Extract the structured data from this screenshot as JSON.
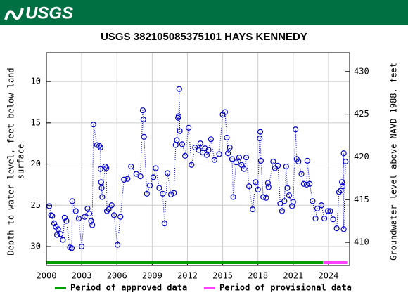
{
  "header": {
    "logo": "USGS"
  },
  "chart_data": {
    "type": "scatter",
    "title": "USGS 382105085375101 HAYS KENNEDY",
    "ylabel": [
      "Depth to water level, feet below land",
      "surface"
    ],
    "y2label": "Groundwater level above NAVD 1988, feet",
    "xlim": [
      2000,
      2025.8
    ],
    "xticks": [
      2000,
      2003,
      2006,
      2009,
      2012,
      2015,
      2018,
      2021,
      2024
    ],
    "ylim": [
      32.3,
      6.5
    ],
    "yticks": [
      10,
      15,
      20,
      25,
      30
    ],
    "y_inverted": true,
    "y2lim": [
      407.3,
      432.2
    ],
    "y2ticks": [
      410,
      415,
      420,
      425,
      430
    ],
    "grid": true,
    "series": [
      {
        "name": "Depth to water level",
        "color": "#0000cc",
        "x": [
          2000.24,
          2000.4,
          2000.5,
          2000.66,
          2000.8,
          2000.9,
          2001.0,
          2001.2,
          2001.4,
          2001.55,
          2001.7,
          2002.0,
          2002.15,
          2002.2,
          2002.5,
          2002.75,
          2003.0,
          2003.25,
          2003.5,
          2003.65,
          2003.8,
          2003.9,
          2004.0,
          2004.3,
          2004.5,
          2004.6,
          2004.6,
          2004.65,
          2004.7,
          2004.75,
          2005.0,
          2005.1,
          2005.15,
          2005.3,
          2005.55,
          2005.75,
          2006.05,
          2006.3,
          2006.6,
          2006.9,
          2007.2,
          2007.65,
          2008.0,
          2008.2,
          2008.25,
          2008.3,
          2008.55,
          2008.8,
          2009.1,
          2009.3,
          2009.6,
          2009.9,
          2010.05,
          2010.3,
          2010.6,
          2010.85,
          2011.0,
          2011.1,
          2011.2,
          2011.25,
          2011.3,
          2011.35,
          2011.55,
          2011.8,
          2012.1,
          2012.35,
          2012.65,
          2012.95,
          2013.1,
          2013.3,
          2013.5,
          2013.65,
          2013.8,
          2014.0,
          2014.3,
          2014.7,
          2015.0,
          2015.2,
          2015.35,
          2015.45,
          2015.6,
          2015.8,
          2015.9,
          2016.15,
          2016.4,
          2016.6,
          2016.8,
          2017.0,
          2017.25,
          2017.55,
          2017.8,
          2018.0,
          2018.15,
          2018.2,
          2018.25,
          2018.45,
          2018.7,
          2018.85,
          2018.9,
          2019.3,
          2019.45,
          2019.7,
          2019.9,
          2020.05,
          2020.25,
          2020.4,
          2020.5,
          2020.65,
          2020.9,
          2021.0,
          2021.2,
          2021.3,
          2021.45,
          2021.7,
          2021.9,
          2022.15,
          2022.2,
          2022.4,
          2022.65,
          2022.9,
          2023.05,
          2023.4,
          2023.65,
          2023.95,
          2024.15,
          2024.4,
          2024.7,
          2024.9,
          2025.05,
          2025.15,
          2025.2,
          2025.3,
          2025.3,
          2025.45
        ],
        "values": [
          25.1,
          26.2,
          26.3,
          27.2,
          27.6,
          28.6,
          27.9,
          28.5,
          29.2,
          26.5,
          26.9,
          30.1,
          30.2,
          24.5,
          25.7,
          26.6,
          30.0,
          26.4,
          25.4,
          26.0,
          26.9,
          27.4,
          15.2,
          17.7,
          17.8,
          18.0,
          20.6,
          22.2,
          22.9,
          24.0,
          20.3,
          20.5,
          25.7,
          25.5,
          25.0,
          26.2,
          29.8,
          26.4,
          21.9,
          21.8,
          20.3,
          21.2,
          21.5,
          13.5,
          14.6,
          16.7,
          23.6,
          22.6,
          21.6,
          20.5,
          22.9,
          23.6,
          27.2,
          21.1,
          23.7,
          23.5,
          17.7,
          17.1,
          14.4,
          14.2,
          10.9,
          16.0,
          17.6,
          19.0,
          15.6,
          20.1,
          18.0,
          18.3,
          17.5,
          18.6,
          18.1,
          18.9,
          18.3,
          17.0,
          19.5,
          18.8,
          14.0,
          13.7,
          16.8,
          18.7,
          18.0,
          19.4,
          24.0,
          19.8,
          19.2,
          20.1,
          20.6,
          19.2,
          22.7,
          25.5,
          22.2,
          23.1,
          16.9,
          16.1,
          19.6,
          24.0,
          24.1,
          22.3,
          22.8,
          19.7,
          20.5,
          20.2,
          24.8,
          25.7,
          24.5,
          20.3,
          22.9,
          23.8,
          25.1,
          24.6,
          15.8,
          19.4,
          19.7,
          21.2,
          22.4,
          22.5,
          19.6,
          22.4,
          24.5,
          26.6,
          25.4,
          25.0,
          26.6,
          25.7,
          25.7,
          26.7,
          27.8,
          23.4,
          23.2,
          22.2,
          22.7,
          18.7,
          27.9,
          19.7
        ]
      }
    ],
    "periods": [
      {
        "name": "Period of approved data",
        "color": "#00a000",
        "start": 2000,
        "end": 2023.55
      },
      {
        "name": "Period of provisional data",
        "color": "#ff40ff",
        "start": 2023.6,
        "end": 2025.6
      }
    ]
  }
}
